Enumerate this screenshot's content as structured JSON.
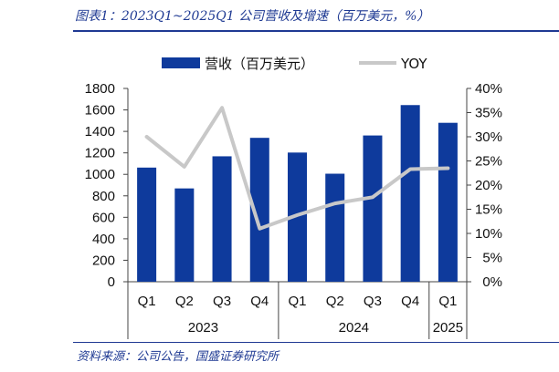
{
  "header": {
    "title": "图表1：2023Q1~2025Q1 公司营收及增速（百万美元，%）"
  },
  "footer": {
    "source": "资料来源：公司公告，国盛证券研究所"
  },
  "chart_data": {
    "type": "bar",
    "categories": [
      "Q1",
      "Q2",
      "Q3",
      "Q4",
      "Q1",
      "Q2",
      "Q3",
      "Q4",
      "Q1"
    ],
    "groups": [
      {
        "label": "2023",
        "span": 4
      },
      {
        "label": "2024",
        "span": 4
      },
      {
        "label": "2025",
        "span": 1
      }
    ],
    "series": [
      {
        "name": "营收（百万美元）",
        "type": "bar",
        "axis": "left",
        "values": [
          1063,
          869,
          1168,
          1340,
          1203,
          1006,
          1362,
          1645,
          1480
        ]
      },
      {
        "name": "YOY",
        "type": "line",
        "axis": "right",
        "values": [
          0.3,
          0.238,
          0.36,
          0.11,
          0.138,
          0.162,
          0.175,
          0.233,
          0.235
        ]
      }
    ],
    "ylim_left": [
      0,
      1800
    ],
    "yticks_left": [
      "0",
      "200",
      "400",
      "600",
      "800",
      "1000",
      "1200",
      "1400",
      "1600",
      "1800"
    ],
    "ylim_right": [
      0,
      0.4
    ],
    "yticks_right": [
      "0%",
      "5%",
      "10%",
      "15%",
      "20%",
      "25%",
      "30%",
      "35%",
      "40%"
    ],
    "legend_position": "top",
    "grid": false,
    "colors": {
      "bar": "#0e3a9c",
      "line": "#c8c8c8"
    }
  }
}
